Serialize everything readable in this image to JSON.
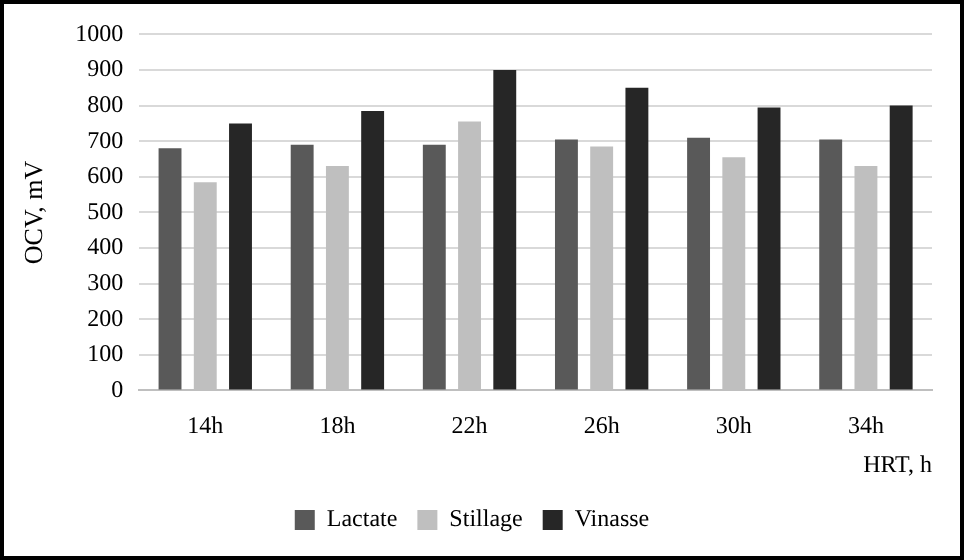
{
  "chart_data": {
    "type": "bar",
    "xlabel": "HRT, h",
    "ylabel": "OCV, mV",
    "categories": [
      "14h",
      "18h",
      "22h",
      "26h",
      "30h",
      "34h"
    ],
    "series": [
      {
        "name": "Lactate",
        "color": "#595959",
        "values": [
          680,
          690,
          690,
          705,
          710,
          705
        ]
      },
      {
        "name": "Stillage",
        "color": "#bfbfbf",
        "values": [
          585,
          630,
          755,
          685,
          655,
          630
        ]
      },
      {
        "name": "Vinasse",
        "color": "#262626",
        "values": [
          750,
          785,
          900,
          850,
          795,
          800
        ]
      }
    ],
    "ylim": [
      0,
      1000
    ],
    "yticks": [
      0,
      100,
      200,
      300,
      400,
      500,
      600,
      700,
      800,
      900,
      1000
    ],
    "grid": "y",
    "legend": "bottom"
  }
}
